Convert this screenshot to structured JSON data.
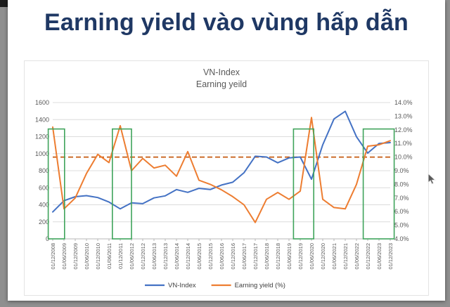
{
  "frame": {
    "background": "#8f8f8f",
    "corner_color": "#1c1c1c"
  },
  "slide": {
    "title": "Earning yield vào vùng hấp dẫn",
    "title_color": "#1F3864",
    "background": "#ffffff"
  },
  "chart_data": {
    "type": "line",
    "title": "VN-Index",
    "subtitle": "Earning yeild",
    "grid": true,
    "legend_position": "bottom",
    "categories": [
      "01/12/2008",
      "01/06/2009",
      "01/12/2009",
      "01/06/2010",
      "01/12/2010",
      "01/06/2011",
      "01/12/2011",
      "01/06/2012",
      "01/12/2012",
      "01/06/2013",
      "01/12/2013",
      "01/06/2014",
      "01/12/2014",
      "01/06/2015",
      "01/12/2015",
      "01/06/2016",
      "01/12/2016",
      "01/06/2017",
      "01/12/2017",
      "01/06/2018",
      "01/12/2018",
      "01/06/2019",
      "01/12/2019",
      "01/06/2020",
      "01/12/2020",
      "01/06/2021",
      "01/12/2021",
      "01/06/2022",
      "01/12/2022",
      "01/06/2023",
      "01/12/2023"
    ],
    "series": [
      {
        "name": "VN-Index",
        "axis": "left",
        "color": "#4472C4",
        "values": [
          316,
          448,
          495,
          507,
          485,
          432,
          352,
          422,
          413,
          481,
          505,
          578,
          546,
          593,
          579,
          632,
          665,
          776,
          970,
          961,
          893,
          950,
          961,
          700,
          1104,
          1408,
          1498,
          1198,
          1007,
          1120,
          1130
        ]
      },
      {
        "name": "Earning yield (%)",
        "axis": "right",
        "color": "#ED7D31",
        "values": [
          12.2,
          6.2,
          7.0,
          8.8,
          10.2,
          9.6,
          12.3,
          9.0,
          9.9,
          9.2,
          9.4,
          8.6,
          10.4,
          8.3,
          8.0,
          7.6,
          7.1,
          6.5,
          5.2,
          6.9,
          7.4,
          6.9,
          7.5,
          12.9,
          6.9,
          6.3,
          6.2,
          8.0,
          10.8,
          10.9,
          11.2
        ]
      }
    ],
    "left_axis": {
      "min": 0,
      "max": 1600,
      "step": 200,
      "ticks": [
        "0",
        "200",
        "400",
        "600",
        "800",
        "1000",
        "1200",
        "1400",
        "1600"
      ]
    },
    "right_axis": {
      "min": 4,
      "max": 14,
      "step": 1,
      "ticks": [
        "4.0%",
        "5.0%",
        "6.0%",
        "7.0%",
        "8.0%",
        "9.0%",
        "10.0%",
        "11.0%",
        "12.0%",
        "13.0%",
        "14.0%"
      ]
    },
    "reference_line": {
      "axis": "right",
      "value": 10.0,
      "color": "#C55A11",
      "style": "dashed"
    },
    "highlight_color": "#3FA45B",
    "highlight_boxes": [
      {
        "from": -0.4,
        "to": 1.05,
        "top_left_value": 1290
      },
      {
        "from": 5.3,
        "to": 7.0,
        "top_left_value": 1290
      },
      {
        "from": 21.4,
        "to": 23.2,
        "top_left_value": 1290
      },
      {
        "from": 27.6,
        "to": 30.35,
        "top_left_value": 1290
      }
    ],
    "legend": [
      "VN-Index",
      "Earning yield (%)"
    ]
  }
}
